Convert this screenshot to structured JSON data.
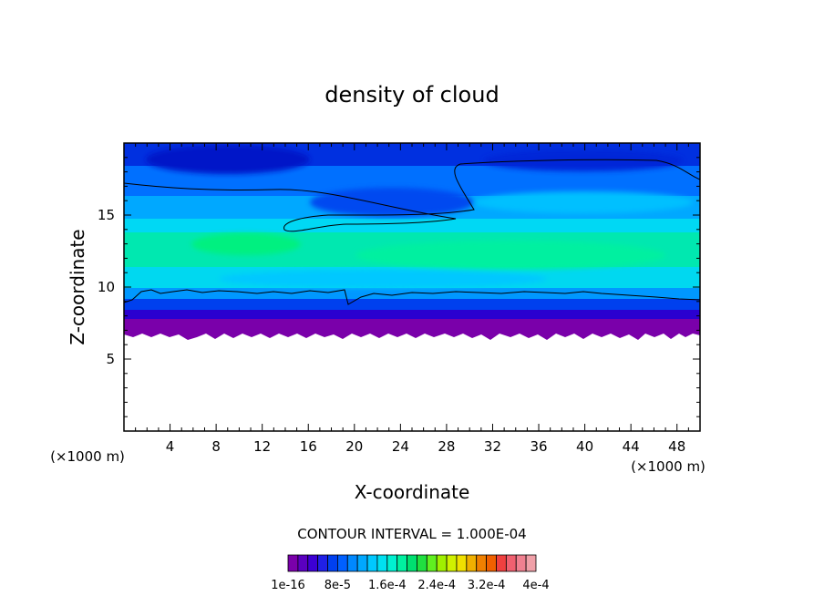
{
  "chart_data": {
    "type": "heatmap",
    "title": "density of cloud",
    "xlabel": "X-coordinate",
    "ylabel": "Z-coordinate",
    "x_unit": "(×1000 m)",
    "z_unit": "(×1000 m)",
    "xlim": [
      0,
      50
    ],
    "ylim": [
      0,
      20
    ],
    "x_ticks": [
      4,
      8,
      12,
      16,
      20,
      24,
      28,
      32,
      36,
      40,
      44,
      48
    ],
    "y_ticks": [
      5,
      10,
      15
    ],
    "contour_interval_text": "CONTOUR INTERVAL = 1.000E-04",
    "colorbar_labels": [
      "1e-16",
      "8e-5",
      "1.6e-4",
      "2.4e-4",
      "3.2e-4",
      "4e-4"
    ],
    "colorbar_colors": [
      "#7a00aa",
      "#5a00c0",
      "#3c00d4",
      "#2020e6",
      "#0040f0",
      "#0060ff",
      "#0088ff",
      "#00a8ff",
      "#00c8ff",
      "#00e0f0",
      "#00f0d0",
      "#00f0a0",
      "#00e070",
      "#20e040",
      "#60f020",
      "#a0f000",
      "#d0f000",
      "#f0e000",
      "#f0b000",
      "#f08000",
      "#f06000",
      "#f04040",
      "#f06070",
      "#f08090",
      "#f0a0a8"
    ],
    "approximate_profile": [
      {
        "z": 6.8,
        "value": 1e-16
      },
      {
        "z": 7.5,
        "value": 1e-05
      },
      {
        "z": 8.5,
        "value": 4e-05
      },
      {
        "z": 9.5,
        "value": 8e-05
      },
      {
        "z": 11.5,
        "value": 0.00013
      },
      {
        "z": 13.0,
        "value": 0.00014
      },
      {
        "z": 15.0,
        "value": 0.0001
      },
      {
        "z": 17.0,
        "value": 6e-05
      },
      {
        "z": 19.5,
        "value": 3e-05
      }
    ]
  }
}
